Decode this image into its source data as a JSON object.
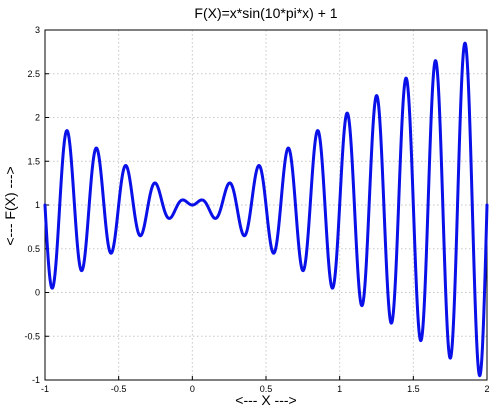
{
  "chart_data": {
    "type": "line",
    "title": "F(X)=x*sin(10*pi*x) + 1",
    "xlabel": "<--- X --->",
    "ylabel": "<--- F(X) --->",
    "xlim": [
      -1,
      2
    ],
    "ylim": [
      -1,
      3
    ],
    "grid": true,
    "line_color": "#0a10e8",
    "x_ticks": [
      -1,
      -0.5,
      0,
      0.5,
      1,
      1.5,
      2
    ],
    "x_tick_labels": [
      "-1",
      "-0.5",
      "0",
      "0.5",
      "1",
      "1.5",
      "2"
    ],
    "y_ticks": [
      -1,
      -0.5,
      0,
      0.5,
      1,
      1.5,
      2,
      2.5,
      3
    ],
    "y_tick_labels": [
      "-1",
      "-0.5",
      "0",
      "0.5",
      "1",
      "1.5",
      "2",
      "2.5",
      "3"
    ],
    "series": [
      {
        "function": "x*sin(10*pi*x) + 1",
        "x_start": -1,
        "x_end": 2,
        "sample_points": [
          [
            -1.0,
            1.0
          ],
          [
            -0.85,
            1.85
          ],
          [
            -0.75,
            0.25
          ],
          [
            -0.65,
            1.65
          ],
          [
            -0.55,
            0.45
          ],
          [
            -0.45,
            1.45
          ],
          [
            -0.35,
            0.65
          ],
          [
            -0.25,
            1.25
          ],
          [
            -0.15,
            0.85
          ],
          [
            -0.05,
            1.05
          ],
          [
            0.05,
            1.05
          ],
          [
            0.15,
            0.85
          ],
          [
            0.25,
            1.25
          ],
          [
            0.35,
            0.65
          ],
          [
            0.45,
            1.45
          ],
          [
            0.55,
            0.45
          ],
          [
            0.65,
            1.65
          ],
          [
            0.75,
            0.25
          ],
          [
            0.85,
            1.85
          ],
          [
            0.95,
            0.05
          ],
          [
            1.05,
            2.05
          ],
          [
            1.15,
            -0.15
          ],
          [
            1.25,
            2.25
          ],
          [
            1.35,
            -0.35
          ],
          [
            1.45,
            2.45
          ],
          [
            1.55,
            -0.55
          ],
          [
            1.65,
            2.65
          ],
          [
            1.75,
            -0.75
          ],
          [
            1.85,
            2.85
          ],
          [
            1.95,
            -0.95
          ],
          [
            2.0,
            1.0
          ]
        ]
      }
    ]
  }
}
